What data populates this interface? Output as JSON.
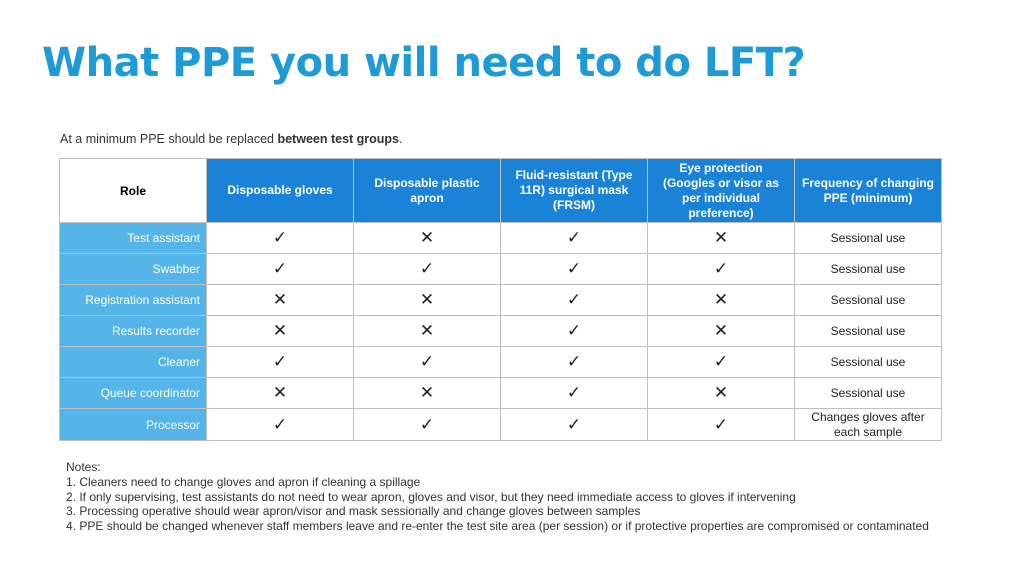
{
  "title": "What PPE you will need to do LFT?",
  "intro": {
    "prefix": "At a minimum PPE should be replaced ",
    "bold": "between test groups",
    "suffix": "."
  },
  "table": {
    "headers": [
      "Role",
      "Disposable gloves",
      "Disposable plastic apron",
      "Fluid-resistant (Type 11R) surgical mask (FRSM)",
      "Eye protection (Googles or visor as per individual preference)",
      "Frequency of changing PPE (minimum)"
    ],
    "rows": [
      {
        "role": "Test assistant",
        "gloves": "✓",
        "apron": "✕",
        "mask": "✓",
        "eye": "✕",
        "freq": "Sessional use"
      },
      {
        "role": "Swabber",
        "gloves": "✓",
        "apron": "✓",
        "mask": "✓",
        "eye": "✓",
        "freq": "Sessional use"
      },
      {
        "role": "Registration assistant",
        "gloves": "✕",
        "apron": "✕",
        "mask": "✓",
        "eye": "✕",
        "freq": "Sessional use"
      },
      {
        "role": "Results recorder",
        "gloves": "✕",
        "apron": "✕",
        "mask": "✓",
        "eye": "✕",
        "freq": "Sessional use"
      },
      {
        "role": "Cleaner",
        "gloves": "✓",
        "apron": "✓",
        "mask": "✓",
        "eye": "✓",
        "freq": "Sessional use"
      },
      {
        "role": "Queue coordinator",
        "gloves": "✕",
        "apron": "✕",
        "mask": "✓",
        "eye": "✕",
        "freq": "Sessional use"
      },
      {
        "role": "Processor",
        "gloves": "✓",
        "apron": "✓",
        "mask": "✓",
        "eye": "✓",
        "freq": "Changes gloves after each sample"
      }
    ]
  },
  "notes": {
    "heading": "Notes:",
    "items": [
      "1. Cleaners need to change gloves and apron if cleaning a spillage",
      "2. If only supervising, test assistants do not need to wear apron, gloves and visor, but they need immediate access to gloves if intervening",
      "3. Processing operative should wear apron/visor and mask sessionally and change gloves between samples",
      "4. PPE should be changed whenever staff members leave and re-enter the test site area (per session) or if protective properties are compromised or contaminated"
    ]
  },
  "colors": {
    "title": "#1e9ad6",
    "header_bg": "#1a83d8",
    "role_bg": "#55b4e8"
  }
}
